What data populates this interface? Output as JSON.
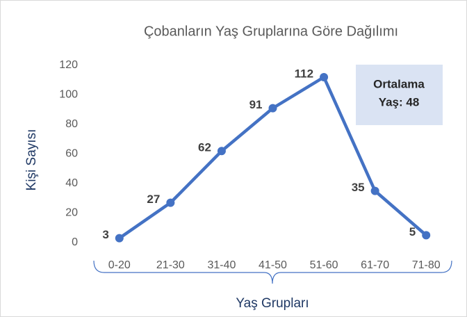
{
  "chart_data": {
    "type": "line",
    "title": "Çobanların Yaş Gruplarına Göre Dağılımı",
    "x_label": "Yaş Grupları",
    "y_label": "Kişi  Sayısı",
    "categories": [
      "0-20",
      "21-30",
      "31-40",
      "41-50",
      "51-60",
      "61-70",
      "71-80"
    ],
    "series": [
      {
        "name": "Kişi Sayısı",
        "color": "#4472c4",
        "values": [
          3,
          27,
          62,
          91,
          112,
          35,
          5
        ]
      }
    ],
    "ylim": [
      0,
      120
    ],
    "yticks": [
      0,
      20,
      40,
      60,
      80,
      100,
      120
    ],
    "grid": false,
    "annotation": {
      "lines": [
        "Ortalama",
        "Yaş: 48"
      ]
    }
  }
}
